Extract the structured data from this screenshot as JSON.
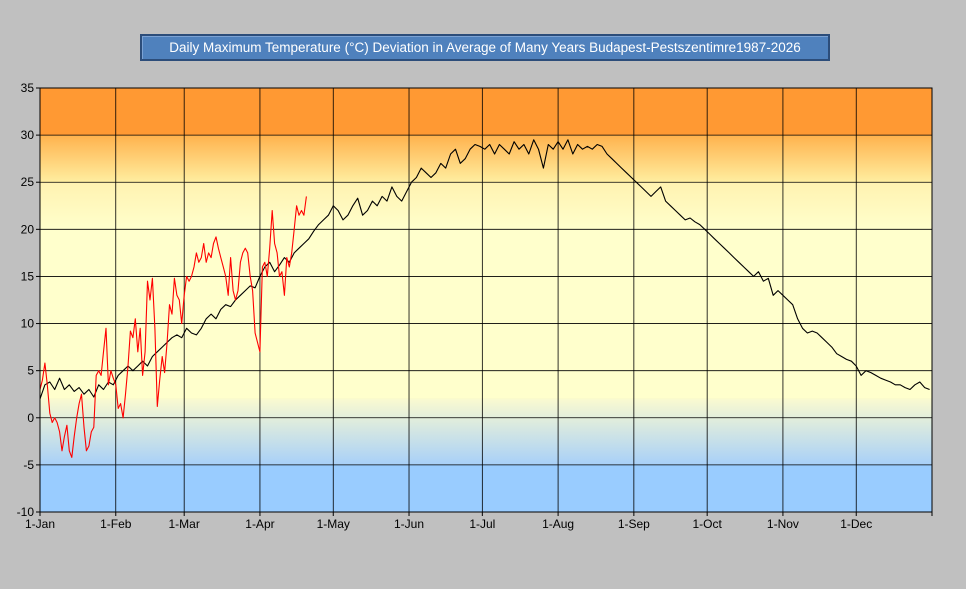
{
  "chart_data": {
    "type": "line",
    "title": "Daily Maximum Temperature (°C) Deviation in Average of Many Years Budapest-Pestszentimre1987-2026",
    "xlabel": "",
    "ylabel": "",
    "ylim": [
      -10,
      35
    ],
    "yticks": [
      "-10",
      "-5",
      "0",
      "5",
      "10",
      "15",
      "20",
      "25",
      "30",
      "35"
    ],
    "xlim_days": [
      1,
      366
    ],
    "x_ticks": [
      {
        "label": "1-Jan",
        "day": 1
      },
      {
        "label": "1-Feb",
        "day": 32
      },
      {
        "label": "1-Mar",
        "day": 60
      },
      {
        "label": "1-Apr",
        "day": 91
      },
      {
        "label": "1-May",
        "day": 121
      },
      {
        "label": "1-Jun",
        "day": 152
      },
      {
        "label": "1-Jul",
        "day": 182
      },
      {
        "label": "1-Aug",
        "day": 213
      },
      {
        "label": "1-Sep",
        "day": 244
      },
      {
        "label": "1-Oct",
        "day": 274
      },
      {
        "label": "1-Nov",
        "day": 305
      },
      {
        "label": "1-Dec",
        "day": 335
      }
    ],
    "grid": true,
    "background_bands": [
      {
        "from": 30,
        "to": 35,
        "color": "#ff9933"
      },
      {
        "from": 25,
        "to": 30,
        "color": "#ffc266"
      },
      {
        "from": 0,
        "to": 25,
        "color": "#ffffcc"
      },
      {
        "from": -5,
        "to": 0,
        "color": "#cce0f5"
      },
      {
        "from": -10,
        "to": -5,
        "color": "#99ccff"
      }
    ],
    "series": [
      {
        "color": "#000000",
        "points": [
          [
            1,
            2.0
          ],
          [
            3,
            3.5
          ],
          [
            5,
            3.8
          ],
          [
            7,
            3.0
          ],
          [
            9,
            4.2
          ],
          [
            11,
            3.0
          ],
          [
            13,
            3.5
          ],
          [
            15,
            2.8
          ],
          [
            17,
            3.2
          ],
          [
            19,
            2.5
          ],
          [
            21,
            3.0
          ],
          [
            23,
            2.2
          ],
          [
            25,
            3.5
          ],
          [
            27,
            3.0
          ],
          [
            29,
            3.8
          ],
          [
            31,
            3.5
          ],
          [
            33,
            4.5
          ],
          [
            35,
            5.0
          ],
          [
            37,
            5.5
          ],
          [
            39,
            5.0
          ],
          [
            41,
            5.5
          ],
          [
            43,
            6.0
          ],
          [
            45,
            5.5
          ],
          [
            47,
            6.5
          ],
          [
            49,
            7.0
          ],
          [
            51,
            7.5
          ],
          [
            53,
            8.0
          ],
          [
            55,
            8.5
          ],
          [
            57,
            8.8
          ],
          [
            59,
            8.5
          ],
          [
            61,
            9.5
          ],
          [
            63,
            9.0
          ],
          [
            65,
            8.8
          ],
          [
            67,
            9.5
          ],
          [
            69,
            10.5
          ],
          [
            71,
            11.0
          ],
          [
            73,
            10.5
          ],
          [
            75,
            11.5
          ],
          [
            77,
            12.0
          ],
          [
            79,
            11.8
          ],
          [
            81,
            12.5
          ],
          [
            83,
            13.0
          ],
          [
            85,
            13.5
          ],
          [
            87,
            14.0
          ],
          [
            89,
            13.8
          ],
          [
            91,
            15.0
          ],
          [
            93,
            16.0
          ],
          [
            95,
            16.5
          ],
          [
            97,
            15.5
          ],
          [
            99,
            16.2
          ],
          [
            101,
            17.0
          ],
          [
            103,
            16.5
          ],
          [
            105,
            17.5
          ],
          [
            107,
            18.0
          ],
          [
            109,
            18.5
          ],
          [
            111,
            19.0
          ],
          [
            113,
            19.8
          ],
          [
            115,
            20.5
          ],
          [
            117,
            21.0
          ],
          [
            119,
            21.5
          ],
          [
            121,
            22.5
          ],
          [
            123,
            22.0
          ],
          [
            125,
            21.0
          ],
          [
            127,
            21.5
          ],
          [
            129,
            22.5
          ],
          [
            131,
            23.3
          ],
          [
            133,
            21.5
          ],
          [
            135,
            22.0
          ],
          [
            137,
            23.0
          ],
          [
            139,
            22.5
          ],
          [
            141,
            23.5
          ],
          [
            143,
            23.0
          ],
          [
            145,
            24.5
          ],
          [
            147,
            23.5
          ],
          [
            149,
            23.0
          ],
          [
            151,
            24.0
          ],
          [
            153,
            25.0
          ],
          [
            155,
            25.5
          ],
          [
            157,
            26.5
          ],
          [
            159,
            26.0
          ],
          [
            161,
            25.5
          ],
          [
            163,
            26.0
          ],
          [
            165,
            27.0
          ],
          [
            167,
            26.5
          ],
          [
            169,
            28.0
          ],
          [
            171,
            28.5
          ],
          [
            173,
            27.0
          ],
          [
            175,
            27.5
          ],
          [
            177,
            28.5
          ],
          [
            179,
            29.0
          ],
          [
            181,
            28.8
          ],
          [
            183,
            28.5
          ],
          [
            185,
            29.0
          ],
          [
            187,
            28.0
          ],
          [
            189,
            29.0
          ],
          [
            191,
            28.5
          ],
          [
            193,
            28.0
          ],
          [
            195,
            29.3
          ],
          [
            197,
            28.5
          ],
          [
            199,
            29.0
          ],
          [
            201,
            28.0
          ],
          [
            203,
            29.5
          ],
          [
            205,
            28.5
          ],
          [
            207,
            26.5
          ],
          [
            209,
            29.0
          ],
          [
            211,
            28.5
          ],
          [
            213,
            29.3
          ],
          [
            215,
            28.5
          ],
          [
            217,
            29.5
          ],
          [
            219,
            28.0
          ],
          [
            221,
            29.0
          ],
          [
            223,
            28.5
          ],
          [
            225,
            28.8
          ],
          [
            227,
            28.5
          ],
          [
            229,
            29.0
          ],
          [
            231,
            28.8
          ],
          [
            233,
            28.0
          ],
          [
            235,
            27.5
          ],
          [
            237,
            27.0
          ],
          [
            239,
            26.5
          ],
          [
            241,
            26.0
          ],
          [
            243,
            25.5
          ],
          [
            245,
            25.0
          ],
          [
            247,
            24.5
          ],
          [
            249,
            24.0
          ],
          [
            251,
            23.5
          ],
          [
            253,
            24.0
          ],
          [
            255,
            24.5
          ],
          [
            257,
            23.0
          ],
          [
            259,
            22.5
          ],
          [
            261,
            22.0
          ],
          [
            263,
            21.5
          ],
          [
            265,
            21.0
          ],
          [
            267,
            21.2
          ],
          [
            269,
            20.8
          ],
          [
            271,
            20.5
          ],
          [
            273,
            20.0
          ],
          [
            275,
            19.5
          ],
          [
            277,
            19.0
          ],
          [
            279,
            18.5
          ],
          [
            281,
            18.0
          ],
          [
            283,
            17.5
          ],
          [
            285,
            17.0
          ],
          [
            287,
            16.5
          ],
          [
            289,
            16.0
          ],
          [
            291,
            15.5
          ],
          [
            293,
            15.0
          ],
          [
            295,
            15.5
          ],
          [
            297,
            14.5
          ],
          [
            299,
            14.8
          ],
          [
            301,
            13.0
          ],
          [
            303,
            13.5
          ],
          [
            305,
            13.0
          ],
          [
            307,
            12.5
          ],
          [
            309,
            12.0
          ],
          [
            311,
            10.5
          ],
          [
            313,
            9.5
          ],
          [
            315,
            9.0
          ],
          [
            317,
            9.2
          ],
          [
            319,
            9.0
          ],
          [
            321,
            8.5
          ],
          [
            323,
            8.0
          ],
          [
            325,
            7.5
          ],
          [
            327,
            6.8
          ],
          [
            329,
            6.5
          ],
          [
            331,
            6.2
          ],
          [
            333,
            6.0
          ],
          [
            335,
            5.5
          ],
          [
            337,
            4.5
          ],
          [
            339,
            5.0
          ],
          [
            341,
            4.8
          ],
          [
            343,
            4.5
          ],
          [
            345,
            4.2
          ],
          [
            347,
            4.0
          ],
          [
            349,
            3.8
          ],
          [
            351,
            3.5
          ],
          [
            353,
            3.5
          ],
          [
            355,
            3.2
          ],
          [
            357,
            3.0
          ],
          [
            359,
            3.5
          ],
          [
            361,
            3.8
          ],
          [
            363,
            3.2
          ],
          [
            365,
            3.0
          ]
        ]
      },
      {
        "color": "#ff0000",
        "points": [
          [
            1,
            3.0
          ],
          [
            2,
            4.0
          ],
          [
            3,
            5.8
          ],
          [
            4,
            3.5
          ],
          [
            5,
            0.5
          ],
          [
            6,
            -0.5
          ],
          [
            7,
            0.0
          ],
          [
            8,
            -0.5
          ],
          [
            9,
            -1.5
          ],
          [
            10,
            -3.5
          ],
          [
            11,
            -2.0
          ],
          [
            12,
            -0.8
          ],
          [
            13,
            -3.5
          ],
          [
            14,
            -4.2
          ],
          [
            15,
            -2.0
          ],
          [
            16,
            0.0
          ],
          [
            17,
            1.5
          ],
          [
            18,
            2.5
          ],
          [
            19,
            -1.0
          ],
          [
            20,
            -3.5
          ],
          [
            21,
            -3.0
          ],
          [
            22,
            -1.5
          ],
          [
            23,
            -1.0
          ],
          [
            24,
            4.5
          ],
          [
            25,
            5.0
          ],
          [
            26,
            4.5
          ],
          [
            27,
            7.0
          ],
          [
            28,
            9.5
          ],
          [
            29,
            3.5
          ],
          [
            30,
            5.0
          ],
          [
            31,
            4.2
          ],
          [
            32,
            3.5
          ],
          [
            33,
            1.0
          ],
          [
            34,
            1.5
          ],
          [
            35,
            0.0
          ],
          [
            36,
            2.5
          ],
          [
            37,
            5.5
          ],
          [
            38,
            9.2
          ],
          [
            39,
            8.5
          ],
          [
            40,
            10.5
          ],
          [
            41,
            7.0
          ],
          [
            42,
            9.5
          ],
          [
            43,
            4.5
          ],
          [
            44,
            7.0
          ],
          [
            45,
            14.5
          ],
          [
            46,
            12.5
          ],
          [
            47,
            14.8
          ],
          [
            48,
            9.5
          ],
          [
            49,
            1.2
          ],
          [
            50,
            4.0
          ],
          [
            51,
            6.5
          ],
          [
            52,
            4.8
          ],
          [
            53,
            8.0
          ],
          [
            54,
            12.0
          ],
          [
            55,
            11.0
          ],
          [
            56,
            14.8
          ],
          [
            57,
            13.0
          ],
          [
            58,
            12.5
          ],
          [
            59,
            10.0
          ],
          [
            60,
            13.0
          ],
          [
            61,
            15.0
          ],
          [
            62,
            14.5
          ],
          [
            63,
            15.0
          ],
          [
            64,
            16.0
          ],
          [
            65,
            17.5
          ],
          [
            66,
            16.5
          ],
          [
            67,
            17.0
          ],
          [
            68,
            18.5
          ],
          [
            69,
            16.5
          ],
          [
            70,
            17.5
          ],
          [
            71,
            17.0
          ],
          [
            72,
            18.5
          ],
          [
            73,
            19.2
          ],
          [
            74,
            18.0
          ],
          [
            75,
            17.0
          ],
          [
            76,
            16.0
          ],
          [
            77,
            15.0
          ],
          [
            78,
            13.0
          ],
          [
            79,
            17.0
          ],
          [
            80,
            13.5
          ],
          [
            81,
            12.5
          ],
          [
            82,
            13.5
          ],
          [
            83,
            16.5
          ],
          [
            84,
            17.5
          ],
          [
            85,
            18.0
          ],
          [
            86,
            17.5
          ],
          [
            87,
            15.0
          ],
          [
            88,
            13.5
          ],
          [
            89,
            9.0
          ],
          [
            90,
            8.0
          ],
          [
            91,
            7.0
          ],
          [
            92,
            16.0
          ],
          [
            93,
            16.5
          ],
          [
            94,
            15.0
          ],
          [
            95,
            18.0
          ],
          [
            96,
            22.0
          ],
          [
            97,
            18.5
          ],
          [
            98,
            17.5
          ],
          [
            99,
            15.0
          ],
          [
            100,
            15.5
          ],
          [
            101,
            13.0
          ],
          [
            102,
            17.0
          ],
          [
            103,
            16.0
          ],
          [
            104,
            17.5
          ],
          [
            105,
            20.0
          ],
          [
            106,
            22.5
          ],
          [
            107,
            21.5
          ],
          [
            108,
            22.0
          ],
          [
            109,
            21.5
          ],
          [
            110,
            23.5
          ]
        ]
      }
    ]
  }
}
